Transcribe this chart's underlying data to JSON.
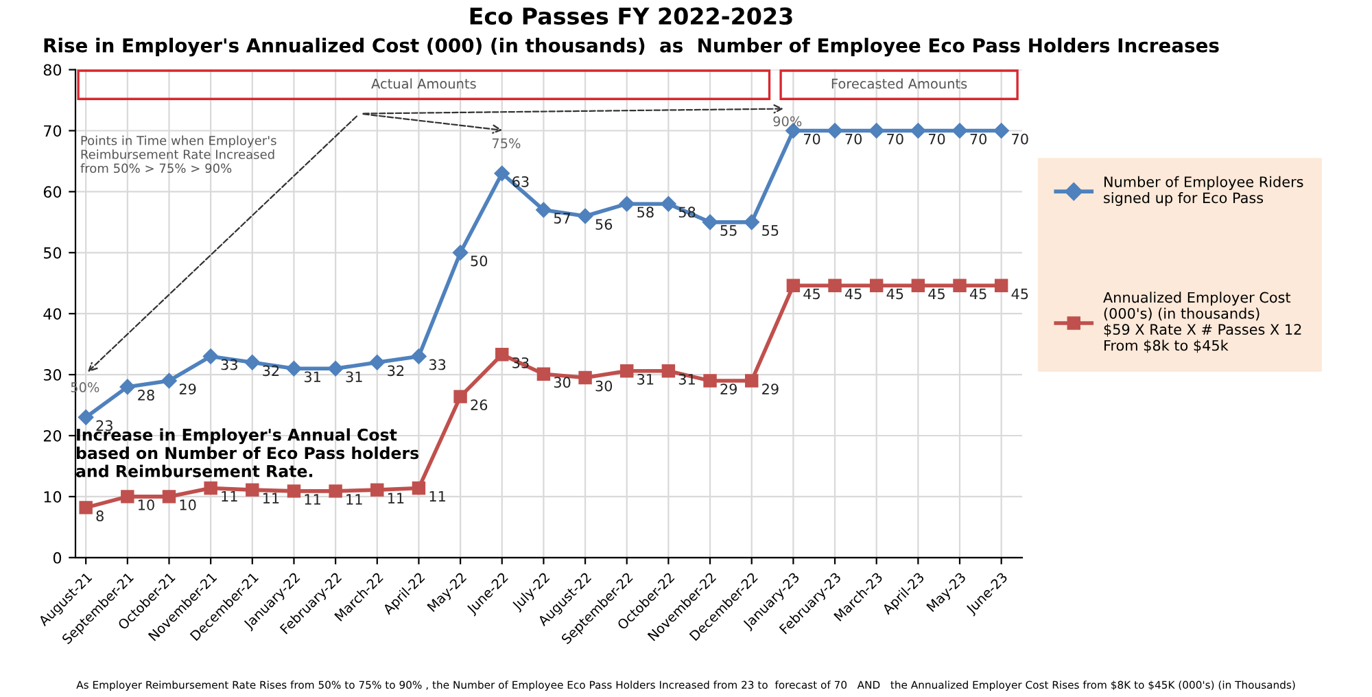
{
  "chart_data": {
    "type": "line",
    "title": "Eco Passes FY 2022-2023",
    "subtitle": "Rise in Employer's Annualized Cost (000) (in thousands)  as  Number of Employee Eco Pass Holders Increases",
    "categories": [
      "August-21",
      "September-21",
      "October-21",
      "November-21",
      "December-21",
      "January-22",
      "February-22",
      "March-22",
      "April-22",
      "May-22",
      "June-22",
      "July-22",
      "August-22",
      "September-22",
      "October-22",
      "November-22",
      "December-22",
      "January-23",
      "February-23",
      "March-23",
      "April-23",
      "May-23",
      "June-23"
    ],
    "series": [
      {
        "name": "Number of Employee Riders\nsigned up for Eco Pass",
        "color": "#4f81bd",
        "marker": "diamond",
        "values": [
          23,
          28,
          29,
          33,
          32,
          31,
          31,
          32,
          33,
          50,
          63,
          57,
          56,
          58,
          58,
          55,
          55,
          70,
          70,
          70,
          70,
          70,
          70
        ],
        "value_labels": [
          "23",
          "28",
          "29",
          "33",
          "32",
          "31",
          "31",
          "32",
          "33",
          "50",
          "63",
          "57",
          "56",
          "58",
          "58",
          "55",
          "55",
          "70",
          "70",
          "70",
          "70",
          "70",
          "70"
        ]
      },
      {
        "name": "Annualized Employer Cost\n(000's) (in thousands)\n$59 X Rate X # Passes X 12\nFrom $8k to $45k",
        "color": "#c0504d",
        "marker": "square",
        "values": [
          8.2,
          10,
          10,
          11.4,
          11.1,
          10.9,
          10.9,
          11.1,
          11.4,
          26.4,
          33.3,
          30.1,
          29.5,
          30.6,
          30.6,
          29,
          29,
          44.6,
          44.6,
          44.6,
          44.6,
          44.6,
          44.6
        ],
        "value_labels": [
          "8",
          "10",
          "10",
          "11",
          "11",
          "11",
          "11",
          "11",
          "11",
          "26",
          "33",
          "30",
          "30",
          "31",
          "31",
          "29",
          "29",
          "45",
          "45",
          "45",
          "45",
          "45",
          "45"
        ]
      }
    ],
    "ylim": [
      0,
      80
    ],
    "yticks": [
      0,
      10,
      20,
      30,
      40,
      50,
      60,
      70,
      80
    ],
    "grid": true,
    "legend": "right",
    "line_style": "solid",
    "annotations": [
      "Actual Amounts",
      "Forecasted Amounts",
      "Points in Time when Employer's\nReimbursement Rate Increased\nfrom 50% > 75% > 90%",
      "Increase in Employer's Annual Cost\nbased on Number of Eco Pass holders\nand Reimbursement Rate.",
      "As Employer Reimbursement Rate Rises from 50% to 75% to 90% , the Number of Employee Eco Pass Holders Increased from 23 to  forecast of 70   AND   the Annualized Employer Cost Rises from $8K to $45K (000's) (in Thousands)",
      "50%",
      "75%",
      "90%"
    ]
  }
}
